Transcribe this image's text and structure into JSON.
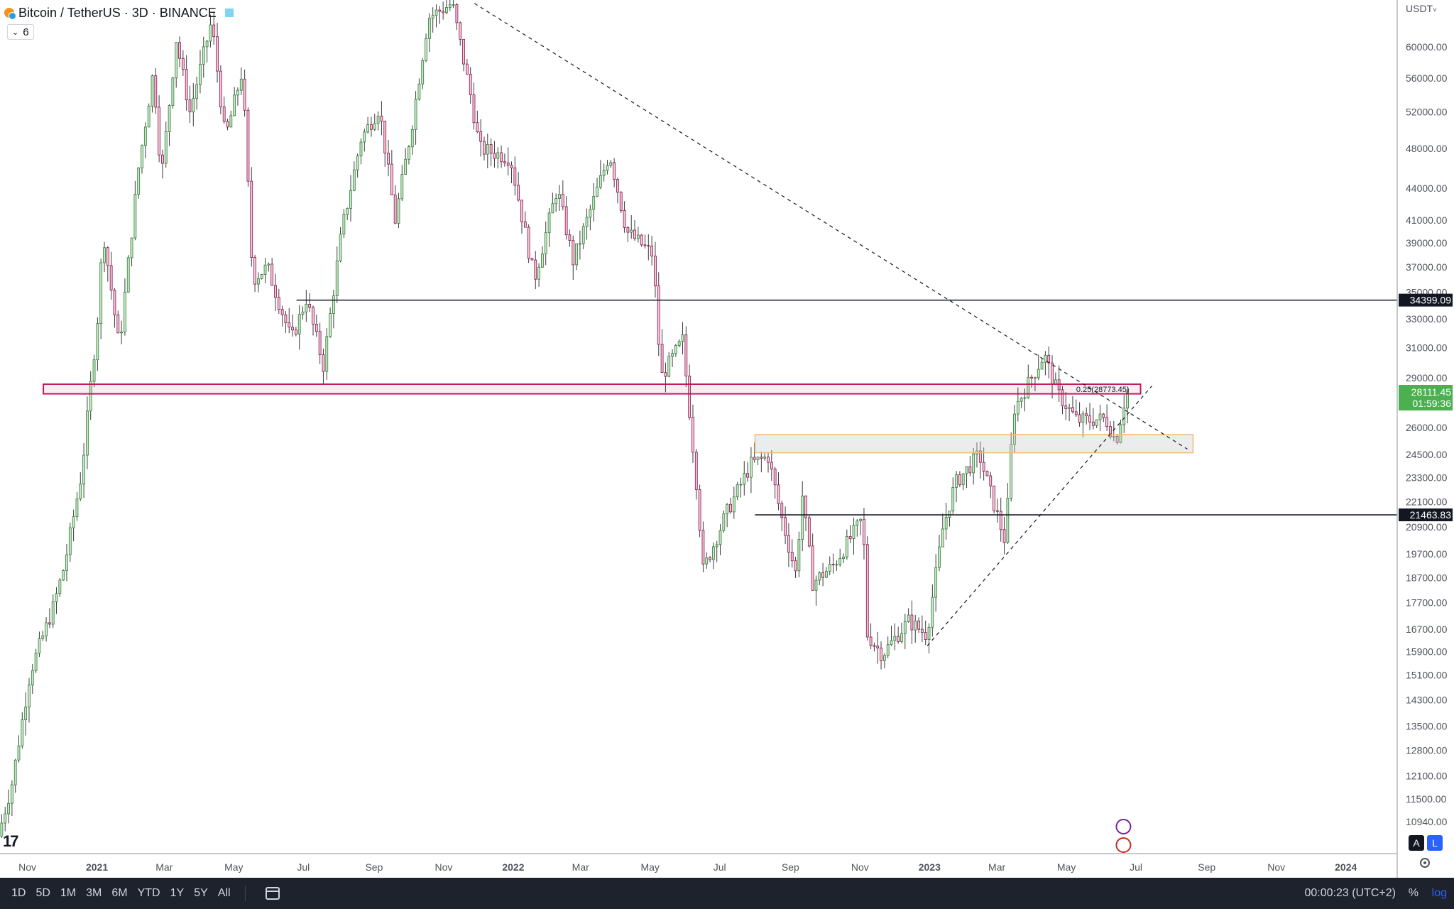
{
  "legend": {
    "symbol": "Bitcoin / TetherUS · 3D · BINANCE",
    "indicator_count": "6"
  },
  "currency_label": "USDT",
  "toolbar": {
    "ranges": [
      "1D",
      "5D",
      "1M",
      "3M",
      "6M",
      "YTD",
      "1Y",
      "5Y",
      "All"
    ],
    "clock": "00:00:23 (UTC+2)",
    "percent": "%",
    "log": "log"
  },
  "axis_buttons": {
    "auto": "A",
    "log": "L"
  },
  "colors": {
    "up": "#26a69a",
    "down": "#ef5350",
    "candle_up_body": "#c8e6c9",
    "candle_down_body": "#f3c7d2",
    "resistance_zone": "#c2185b",
    "support_zone": "#f5b971",
    "price_label_bg": "#4caf50",
    "hline_label_bg": "#131722"
  },
  "chart_data": {
    "type": "candlestick",
    "title": "Bitcoin / TetherUS · 3D · BINANCE",
    "y_scale": "log",
    "ylim": [
      10200,
      66500
    ],
    "xlim": [
      "2020-10-08",
      "2024-02-15"
    ],
    "x_ticks": [
      {
        "date": "2020-11-01",
        "label": "Nov"
      },
      {
        "date": "2021-01-01",
        "label": "2021"
      },
      {
        "date": "2021-03-01",
        "label": "Mar"
      },
      {
        "date": "2021-05-01",
        "label": "May"
      },
      {
        "date": "2021-07-01",
        "label": "Jul"
      },
      {
        "date": "2021-09-01",
        "label": "Sep"
      },
      {
        "date": "2021-11-01",
        "label": "Nov"
      },
      {
        "date": "2022-01-01",
        "label": "2022"
      },
      {
        "date": "2022-03-01",
        "label": "Mar"
      },
      {
        "date": "2022-05-01",
        "label": "May"
      },
      {
        "date": "2022-07-01",
        "label": "Jul"
      },
      {
        "date": "2022-09-01",
        "label": "Sep"
      },
      {
        "date": "2022-11-01",
        "label": "Nov"
      },
      {
        "date": "2023-01-01",
        "label": "2023"
      },
      {
        "date": "2023-03-01",
        "label": "Mar"
      },
      {
        "date": "2023-05-01",
        "label": "May"
      },
      {
        "date": "2023-07-01",
        "label": "Jul"
      },
      {
        "date": "2023-09-01",
        "label": "Sep"
      },
      {
        "date": "2023-11-01",
        "label": "Nov"
      },
      {
        "date": "2024-01-01",
        "label": "2024"
      }
    ],
    "y_ticks": [
      60000,
      56000,
      52000,
      48000,
      44000,
      41000,
      39000,
      37000,
      35000,
      33000,
      31000,
      29000,
      26000,
      24500,
      23300,
      22100,
      20900,
      19700,
      18700,
      17700,
      16700,
      15900,
      15100,
      14300,
      13500,
      12800,
      12100,
      11500,
      10940
    ],
    "y_tick_labels": [
      "60000.00",
      "56000.00",
      "52000.00",
      "48000.00",
      "44000.00",
      "41000.00",
      "39000.00",
      "37000.00",
      "35000.00",
      "33000.00",
      "31000.00",
      "29000.00",
      "26000.00",
      "24500.00",
      "23300.00",
      "22100.00",
      "20900.00",
      "19700.00",
      "18700.00",
      "17700.00",
      "16700.00",
      "15900.00",
      "15100.00",
      "14300.00",
      "13500.00",
      "12800.00",
      "12100.00",
      "11500.00",
      "10940.00"
    ],
    "price_anchors": [
      [
        "2020-10-08",
        10600
      ],
      [
        "2020-10-20",
        11900
      ],
      [
        "2020-11-05",
        15200
      ],
      [
        "2020-11-25",
        17500
      ],
      [
        "2020-12-05",
        19200
      ],
      [
        "2020-12-20",
        23500
      ],
      [
        "2021-01-03",
        33000
      ],
      [
        "2021-01-08",
        40000
      ],
      [
        "2021-01-22",
        31000
      ],
      [
        "2021-02-08",
        46000
      ],
      [
        "2021-02-21",
        57000
      ],
      [
        "2021-02-28",
        45000
      ],
      [
        "2021-03-13",
        61000
      ],
      [
        "2021-03-25",
        52000
      ],
      [
        "2021-04-13",
        63500
      ],
      [
        "2021-04-25",
        49000
      ],
      [
        "2021-05-10",
        57000
      ],
      [
        "2021-05-19",
        36000
      ],
      [
        "2021-06-01",
        37000
      ],
      [
        "2021-06-22",
        31500
      ],
      [
        "2021-07-05",
        34500
      ],
      [
        "2021-07-20",
        29800
      ],
      [
        "2021-08-05",
        40000
      ],
      [
        "2021-08-22",
        49000
      ],
      [
        "2021-09-07",
        52500
      ],
      [
        "2021-09-21",
        41000
      ],
      [
        "2021-10-05",
        50000
      ],
      [
        "2021-10-20",
        64000
      ],
      [
        "2021-11-10",
        66000
      ],
      [
        "2021-11-26",
        54000
      ],
      [
        "2021-12-04",
        48000
      ],
      [
        "2021-12-31",
        47000
      ],
      [
        "2022-01-21",
        36000
      ],
      [
        "2022-02-10",
        44000
      ],
      [
        "2022-02-24",
        37500
      ],
      [
        "2022-03-28",
        47500
      ],
      [
        "2022-04-12",
        40000
      ],
      [
        "2022-05-05",
        38000
      ],
      [
        "2022-05-12",
        29000
      ],
      [
        "2022-05-31",
        31500
      ],
      [
        "2022-06-13",
        22500
      ],
      [
        "2022-06-18",
        19000
      ],
      [
        "2022-07-08",
        21500
      ],
      [
        "2022-07-30",
        24000
      ],
      [
        "2022-08-14",
        24400
      ],
      [
        "2022-08-25",
        21500
      ],
      [
        "2022-09-07",
        18900
      ],
      [
        "2022-09-13",
        22400
      ],
      [
        "2022-09-22",
        18500
      ],
      [
        "2022-10-10",
        19200
      ],
      [
        "2022-11-05",
        21300
      ],
      [
        "2022-11-09",
        16500
      ],
      [
        "2022-11-22",
        15800
      ],
      [
        "2022-12-15",
        17000
      ],
      [
        "2022-12-31",
        16500
      ],
      [
        "2023-01-14",
        20800
      ],
      [
        "2023-01-25",
        23000
      ],
      [
        "2023-02-15",
        24500
      ],
      [
        "2023-03-10",
        20200
      ],
      [
        "2023-03-17",
        27000
      ],
      [
        "2023-04-13",
        30500
      ],
      [
        "2023-04-25",
        28000
      ],
      [
        "2023-05-12",
        26400
      ],
      [
        "2023-06-06",
        26500
      ],
      [
        "2023-06-15",
        25200
      ],
      [
        "2023-06-24",
        28111
      ]
    ],
    "horizontal_lines": [
      {
        "price": 34399.09,
        "label": "34399.09",
        "from": "2021-06-25"
      },
      {
        "price": 21463.83,
        "label": "21463.83",
        "from": "2022-08-01"
      }
    ],
    "zones": [
      {
        "name": "resistance",
        "top": 28600,
        "bottom": 28000,
        "from": "2020-11-15",
        "to": "2023-07-05",
        "label": "0.25(28773.45)"
      },
      {
        "name": "support",
        "top": 25600,
        "bottom": 24600,
        "from": "2022-08-01",
        "to": "2023-08-20"
      }
    ],
    "trendlines": [
      {
        "name": "descending",
        "from": [
          "2021-11-28",
          66000
        ],
        "to": [
          "2023-08-15",
          24800
        ]
      },
      {
        "name": "ascending",
        "from": [
          "2022-12-30",
          16100
        ],
        "to": [
          "2023-07-15",
          28500
        ]
      }
    ],
    "last_price": {
      "value": 28111.45,
      "label": "28111.45",
      "countdown": "01:59:36"
    }
  }
}
